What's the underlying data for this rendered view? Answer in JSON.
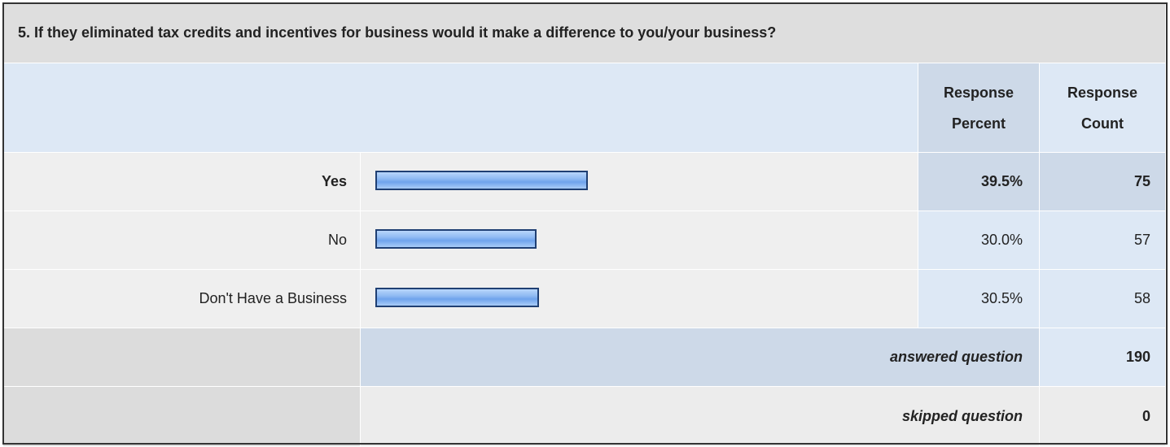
{
  "question": {
    "title": "5. If they eliminated tax credits and incentives for business would it make a difference to you/your business?"
  },
  "header": {
    "percent": "Response Percent",
    "count": "Response Count"
  },
  "rows": [
    {
      "label": "Yes",
      "percent": 39.5,
      "percent_label": "39.5%",
      "count": 75
    },
    {
      "label": "No",
      "percent": 30.0,
      "percent_label": "30.0%",
      "count": 57
    },
    {
      "label": "Don't Have a Business",
      "percent": 30.5,
      "percent_label": "30.5%",
      "count": 58
    }
  ],
  "summary": [
    {
      "label": "answered question",
      "count": 190
    },
    {
      "label": "skipped question",
      "count": 0
    }
  ]
}
